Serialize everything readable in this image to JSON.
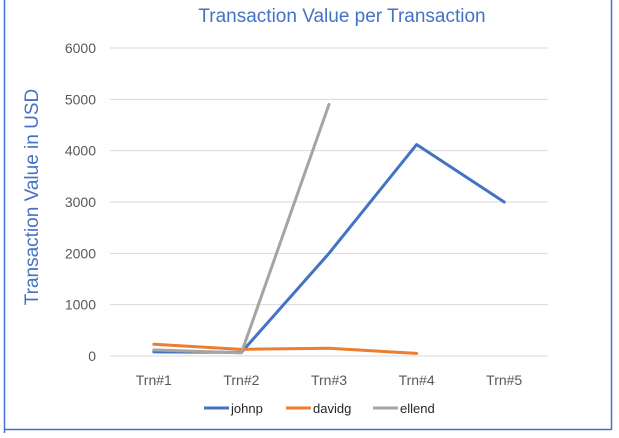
{
  "chart_data": {
    "type": "line",
    "title": "Transaction Value per Transaction",
    "xlabel": "",
    "ylabel": "Transaction Value in USD",
    "categories": [
      "Trn#1",
      "Trn#2",
      "Trn#3",
      "Trn#4",
      "Trn#5"
    ],
    "ylim": [
      0,
      6000
    ],
    "yticks": [
      0,
      1000,
      2000,
      3000,
      4000,
      5000,
      6000
    ],
    "grid": true,
    "legend_position": "bottom",
    "series": [
      {
        "name": "johnp",
        "color": "#4472C4",
        "values": [
          80,
          70,
          2000,
          4120,
          3000
        ]
      },
      {
        "name": "davidg",
        "color": "#ED7D31",
        "values": [
          230,
          130,
          150,
          50,
          null
        ]
      },
      {
        "name": "ellend",
        "color": "#A5A5A5",
        "values": [
          120,
          60,
          4900,
          null,
          null
        ]
      }
    ],
    "colors": {
      "title": "#4472C4",
      "axis_title": "#4472C4",
      "tick": "#595959",
      "grid": "#D9D9D9",
      "frame": "#4472C4"
    }
  }
}
